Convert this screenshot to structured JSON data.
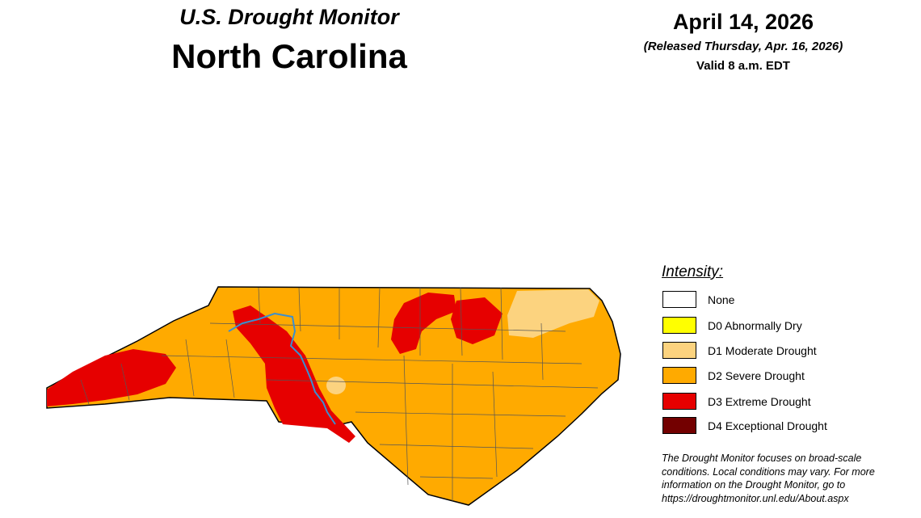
{
  "header": {
    "title": "U.S. Drought Monitor",
    "region": "North Carolina"
  },
  "date": {
    "map_date": "April 14, 2026",
    "released": "(Released Thursday, Apr. 16, 2026)",
    "valid": "Valid 8 a.m. EDT"
  },
  "legend": {
    "title": "Intensity:",
    "items": [
      {
        "label": "None"
      },
      {
        "label": "D0 Abnormally Dry"
      },
      {
        "label": "D1 Moderate Drought"
      },
      {
        "label": "D2 Severe Drought"
      },
      {
        "label": "D3 Extreme Drought"
      },
      {
        "label": "D4 Exceptional Drought"
      }
    ]
  },
  "footnote": {
    "lines": [
      "The Drought Monitor focuses on broad-scale",
      "conditions. Local conditions may vary. For more",
      "information on the Drought Monitor, go to",
      "https://droughtmonitor.unl.edu/About.aspx"
    ]
  }
}
